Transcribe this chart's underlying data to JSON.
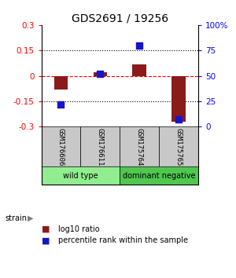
{
  "title": "GDS2691 / 19256",
  "samples": [
    "GSM176606",
    "GSM176611",
    "GSM175764",
    "GSM175765"
  ],
  "log10_ratio": [
    -0.08,
    0.02,
    0.07,
    -0.27
  ],
  "percentile_rank": [
    22,
    52,
    80,
    7
  ],
  "bar_color": "#8B1A1A",
  "square_color": "#1515CC",
  "ylim_left": [
    -0.3,
    0.3
  ],
  "ylim_right": [
    0,
    100
  ],
  "yticks_left": [
    -0.3,
    -0.15,
    0,
    0.15,
    0.3
  ],
  "yticks_right": [
    0,
    25,
    50,
    75,
    100
  ],
  "ytick_labels_right": [
    "0",
    "25",
    "50",
    "75",
    "100%"
  ],
  "hlines": [
    0.15,
    -0.15
  ],
  "groups": [
    {
      "label": "wild type",
      "samples": [
        0,
        1
      ],
      "color": "#90EE90"
    },
    {
      "label": "dominant negative",
      "samples": [
        2,
        3
      ],
      "color": "#50C850"
    }
  ],
  "strain_label": "strain",
  "legend_red_label": "log10 ratio",
  "legend_blue_label": "percentile rank within the sample",
  "bar_width": 0.35,
  "square_size": 40,
  "title_fontsize": 10,
  "tick_fontsize": 7.5
}
